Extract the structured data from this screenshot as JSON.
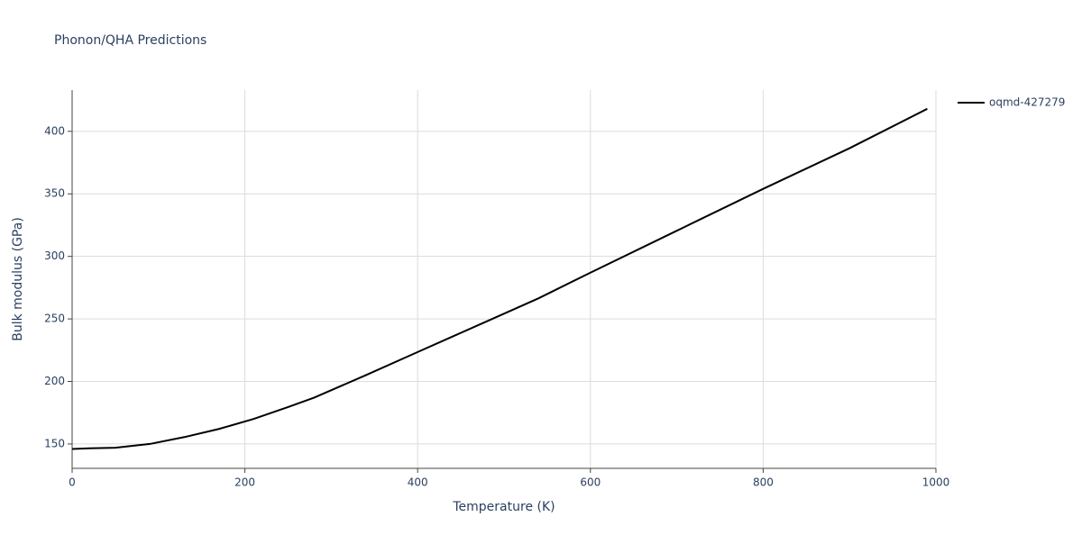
{
  "chart_data": {
    "type": "line",
    "title": "Phonon/QHA Predictions",
    "x_label": "Temperature (K)",
    "y_label": "Bulk modulus (GPa)",
    "x": [
      0,
      20,
      50,
      90,
      130,
      170,
      210,
      250,
      280,
      340,
      400,
      470,
      540,
      600,
      700,
      800,
      900,
      990
    ],
    "series": [
      {
        "name": "oqmd-427279",
        "color": "#000000",
        "values": [
          146,
          146.5,
          147,
          150,
          155.5,
          162,
          170,
          179.5,
          187,
          205,
          223.5,
          245,
          266.5,
          287,
          320.5,
          354,
          386.5,
          418
        ]
      }
    ],
    "xlim": [
      0,
      1000
    ],
    "xticks": [
      0,
      200,
      400,
      600,
      800,
      1000
    ],
    "ylim": [
      130.5,
      433
    ],
    "yticks": [
      150,
      200,
      250,
      300,
      350,
      400
    ],
    "grid": true,
    "legend": "right"
  }
}
